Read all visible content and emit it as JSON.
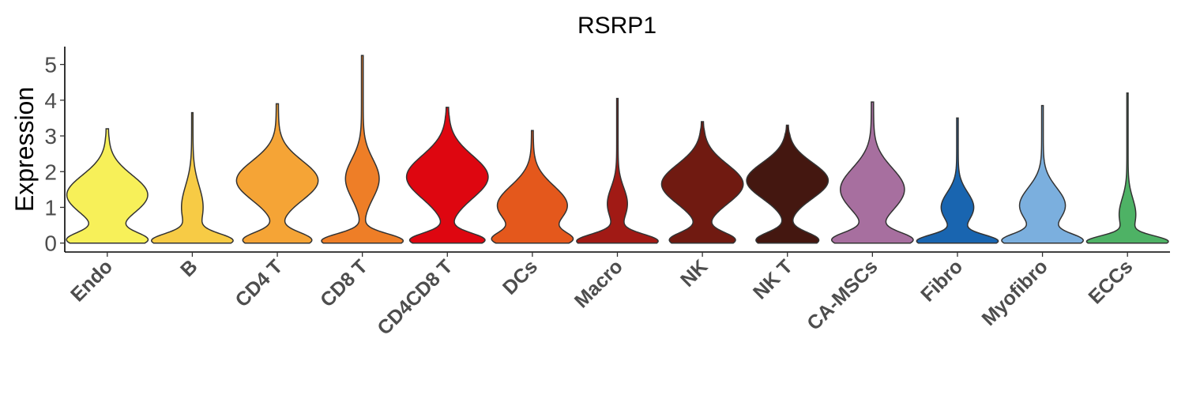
{
  "chart_data": {
    "type": "violin",
    "title": "RSRP1",
    "xlabel": "",
    "ylabel": "Expression",
    "ylim": [
      -0.25,
      5.5
    ],
    "yticks": [
      "0",
      "1",
      "2",
      "3",
      "4",
      "5"
    ],
    "grid": false,
    "legend": "none",
    "categories": [
      "Endo",
      "B",
      "CD4 T",
      "CD8 T",
      "CD4CD8 T",
      "DCs",
      "Macro",
      "NK",
      "NK T",
      "CA-MSCs",
      "Fibro",
      "Myofibro",
      "ECCs"
    ],
    "colors": [
      "#F7F059",
      "#F7CB45",
      "#F5A436",
      "#EE7E27",
      "#DE0610",
      "#E4581C",
      "#A11A15",
      "#701A11",
      "#441710",
      "#A76F9F",
      "#1965B0",
      "#7BAFDE",
      "#4EB265"
    ],
    "violins": [
      {
        "max": 3.2,
        "modes": [
          {
            "y": 0.08,
            "w": 0.3,
            "sd": 0.22
          },
          {
            "y": 1.35,
            "w": 0.32,
            "sd": 0.55
          }
        ]
      },
      {
        "max": 3.65,
        "modes": [
          {
            "y": 0.06,
            "w": 0.55,
            "sd": 0.2
          },
          {
            "y": 1.0,
            "w": 0.15,
            "sd": 0.6
          }
        ]
      },
      {
        "max": 3.9,
        "modes": [
          {
            "y": 0.08,
            "w": 0.3,
            "sd": 0.22
          },
          {
            "y": 1.75,
            "w": 0.36,
            "sd": 0.55
          }
        ]
      },
      {
        "max": 5.25,
        "modes": [
          {
            "y": 0.06,
            "w": 0.45,
            "sd": 0.2
          },
          {
            "y": 1.8,
            "w": 0.18,
            "sd": 0.55
          }
        ]
      },
      {
        "max": 3.8,
        "modes": [
          {
            "y": 0.08,
            "w": 0.3,
            "sd": 0.2
          },
          {
            "y": 1.85,
            "w": 0.33,
            "sd": 0.6
          }
        ]
      },
      {
        "max": 3.15,
        "modes": [
          {
            "y": 0.08,
            "w": 0.35,
            "sd": 0.22
          },
          {
            "y": 1.05,
            "w": 0.37,
            "sd": 0.55
          }
        ]
      },
      {
        "max": 4.05,
        "modes": [
          {
            "y": 0.05,
            "w": 0.55,
            "sd": 0.2
          },
          {
            "y": 1.1,
            "w": 0.13,
            "sd": 0.45
          }
        ]
      },
      {
        "max": 3.4,
        "modes": [
          {
            "y": 0.08,
            "w": 0.3,
            "sd": 0.22
          },
          {
            "y": 1.65,
            "w": 0.38,
            "sd": 0.55
          }
        ]
      },
      {
        "max": 3.3,
        "modes": [
          {
            "y": 0.08,
            "w": 0.32,
            "sd": 0.22
          },
          {
            "y": 1.75,
            "w": 0.42,
            "sd": 0.5
          }
        ]
      },
      {
        "max": 3.95,
        "modes": [
          {
            "y": 0.08,
            "w": 0.33,
            "sd": 0.22
          },
          {
            "y": 1.5,
            "w": 0.27,
            "sd": 0.6
          }
        ]
      },
      {
        "max": 3.5,
        "modes": [
          {
            "y": 0.05,
            "w": 0.5,
            "sd": 0.18
          },
          {
            "y": 1.0,
            "w": 0.2,
            "sd": 0.42
          }
        ]
      },
      {
        "max": 3.85,
        "modes": [
          {
            "y": 0.06,
            "w": 0.45,
            "sd": 0.2
          },
          {
            "y": 1.05,
            "w": 0.27,
            "sd": 0.5
          }
        ]
      },
      {
        "max": 4.2,
        "modes": [
          {
            "y": 0.04,
            "w": 0.6,
            "sd": 0.16
          },
          {
            "y": 0.8,
            "w": 0.12,
            "sd": 0.45
          }
        ]
      }
    ]
  }
}
